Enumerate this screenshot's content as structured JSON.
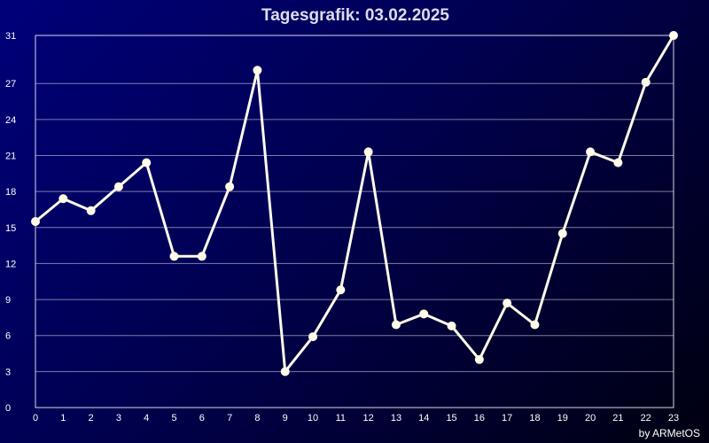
{
  "title": "Tagesgrafik: 03.02.2025",
  "credit": "by ARMetOS",
  "colors": {
    "line": "#fffbe8",
    "grid": "#a8a8c8",
    "background_start": "#00007a",
    "background_end": "#000010"
  },
  "chart_data": {
    "type": "line",
    "title": "Tagesgrafik: 03.02.2025",
    "xlabel": "",
    "ylabel": "",
    "x": [
      0,
      1,
      2,
      3,
      4,
      5,
      6,
      7,
      8,
      9,
      10,
      11,
      12,
      13,
      14,
      15,
      16,
      17,
      18,
      19,
      20,
      21,
      22,
      23
    ],
    "xlim": [
      0,
      23
    ],
    "ylim": [
      0,
      31
    ],
    "yticks": [
      0,
      3,
      6,
      9,
      12,
      15,
      18,
      21,
      24,
      27,
      31
    ],
    "grid": true,
    "series": [
      {
        "values": [
          15.5,
          17.4,
          16.4,
          18.4,
          20.4,
          12.6,
          12.6,
          18.4,
          28.1,
          3.0,
          5.9,
          9.8,
          21.3,
          6.9,
          7.8,
          6.8,
          4.0,
          8.7,
          6.9,
          14.5,
          21.3,
          20.4,
          27.1,
          31.0
        ]
      }
    ]
  }
}
